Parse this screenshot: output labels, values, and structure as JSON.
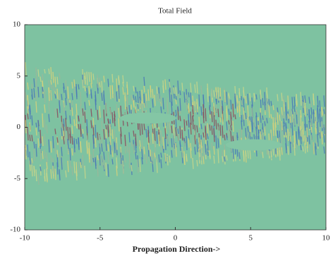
{
  "chart_data": {
    "type": "field",
    "title": "Total Field",
    "xlabel": "Propagation Direction->",
    "xlim": [
      -10,
      10
    ],
    "ylim": [
      -10,
      10
    ],
    "xticks": [
      -10,
      -5,
      0,
      5,
      10
    ],
    "yticks": [
      -10,
      -5,
      0,
      5,
      10
    ]
  }
}
